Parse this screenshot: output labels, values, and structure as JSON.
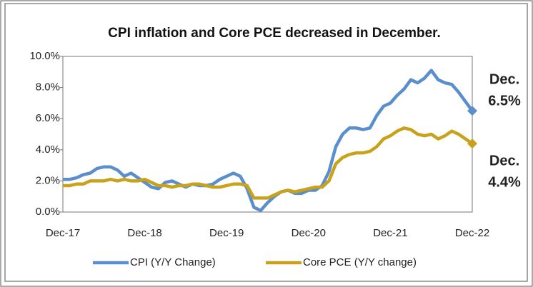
{
  "chart_data": {
    "type": "line",
    "title": "CPI inflation and Core PCE decreased in December.",
    "categories": [
      "Dec-17",
      null,
      null,
      null,
      null,
      null,
      null,
      null,
      null,
      null,
      null,
      null,
      "Dec-18",
      null,
      null,
      null,
      null,
      null,
      null,
      null,
      null,
      null,
      null,
      null,
      "Dec-19",
      null,
      null,
      null,
      null,
      null,
      null,
      null,
      null,
      null,
      null,
      null,
      "Dec-20",
      null,
      null,
      null,
      null,
      null,
      null,
      null,
      null,
      null,
      null,
      null,
      "Dec-21",
      null,
      null,
      null,
      null,
      null,
      null,
      null,
      null,
      null,
      null,
      null,
      "Dec-22"
    ],
    "series": [
      {
        "name": "CPI (Y/Y Change)",
        "color": "#5b8fcc",
        "values": [
          2.1,
          2.1,
          2.2,
          2.4,
          2.5,
          2.8,
          2.9,
          2.9,
          2.7,
          2.3,
          2.5,
          2.2,
          1.9,
          1.6,
          1.5,
          1.9,
          2.0,
          1.8,
          1.6,
          1.8,
          1.7,
          1.7,
          1.8,
          2.1,
          2.3,
          2.5,
          2.3,
          1.5,
          0.3,
          0.1,
          0.6,
          1.0,
          1.3,
          1.4,
          1.2,
          1.2,
          1.4,
          1.4,
          1.7,
          2.6,
          4.2,
          5.0,
          5.4,
          5.4,
          5.3,
          5.4,
          6.2,
          6.8,
          7.0,
          7.5,
          7.9,
          8.5,
          8.3,
          8.6,
          9.1,
          8.5,
          8.3,
          8.2,
          7.7,
          7.1,
          6.5
        ]
      },
      {
        "name": "Core PCE (Y/Y change)",
        "color": "#c9a21c",
        "values": [
          1.7,
          1.7,
          1.8,
          1.8,
          2.0,
          2.0,
          2.0,
          2.1,
          2.0,
          2.1,
          2.0,
          2.0,
          2.1,
          1.9,
          1.7,
          1.7,
          1.6,
          1.7,
          1.7,
          1.8,
          1.8,
          1.7,
          1.6,
          1.6,
          1.7,
          1.8,
          1.8,
          1.7,
          0.9,
          0.9,
          0.9,
          1.1,
          1.3,
          1.4,
          1.3,
          1.4,
          1.5,
          1.6,
          1.6,
          2.0,
          3.1,
          3.5,
          3.7,
          3.8,
          3.8,
          3.9,
          4.2,
          4.7,
          4.9,
          5.2,
          5.4,
          5.3,
          5.0,
          4.9,
          5.0,
          4.7,
          4.9,
          5.2,
          5.0,
          4.7,
          4.4
        ]
      }
    ],
    "ylim": [
      0,
      10
    ],
    "yticks": [
      {
        "value": 0,
        "label": "0.0%"
      },
      {
        "value": 2,
        "label": "2.0%"
      },
      {
        "value": 4,
        "label": "4.0%"
      },
      {
        "value": 6,
        "label": "6.0%"
      },
      {
        "value": 8,
        "label": "8.0%"
      },
      {
        "value": 10,
        "label": "10.0%"
      }
    ],
    "annotations": [
      {
        "lines": [
          "Dec.",
          "6.5%"
        ],
        "color": "#2e6fae"
      },
      {
        "lines": [
          "Dec.",
          "4.4%"
        ],
        "color": "#c9a21c"
      }
    ],
    "legend": "bottom"
  }
}
